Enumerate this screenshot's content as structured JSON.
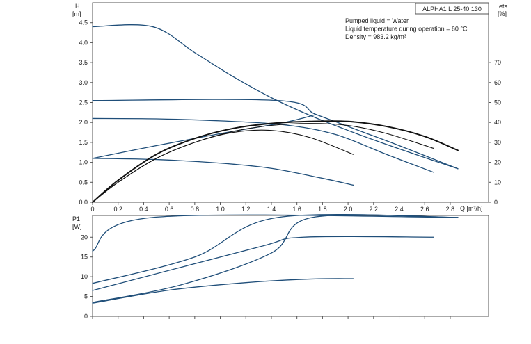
{
  "chart_data": [
    {
      "type": "line",
      "title": "ALPHA1 L 25-40 130",
      "xlabel": "Q [m³/h]",
      "ylabel": "H",
      "ylabel_unit": "[m]",
      "y2label": "eta",
      "y2label_unit": "[%]",
      "xlim": [
        0,
        3.1
      ],
      "ylim": [
        0,
        5.0
      ],
      "y2lim": [
        0,
        100
      ],
      "x_ticks": [
        "0",
        "0.2",
        "0.4",
        "0.6",
        "0.8",
        "1.0",
        "1.2",
        "1.4",
        "1.6",
        "1.8",
        "2.0",
        "2.2",
        "2.4",
        "2.6",
        "2.8"
      ],
      "y_ticks": [
        "0.0",
        "0.5",
        "1.0",
        "1.5",
        "2.0",
        "2.5",
        "3.0",
        "3.5",
        "4.0",
        "4.5"
      ],
      "y2_ticks": [
        "0",
        "10",
        "20",
        "30",
        "40",
        "50",
        "60",
        "70"
      ],
      "info": [
        "Pumped liquid = Water",
        "Liquid temperature during operation = 60 °C",
        "Density = 983.2 kg/m³"
      ],
      "series": [
        {
          "axis": "H",
          "x": [
            0,
            0.47,
            0.8,
            1.1,
            1.4,
            1.7,
            2.0,
            2.3,
            2.6,
            2.86
          ],
          "values": [
            4.4,
            4.4,
            3.75,
            3.15,
            2.62,
            2.18,
            1.8,
            1.45,
            1.12,
            0.84
          ]
        },
        {
          "axis": "H",
          "x": [
            0,
            1.45,
            1.75,
            2.1,
            2.4,
            2.86
          ],
          "values": [
            2.55,
            2.55,
            2.2,
            1.78,
            1.42,
            0.84
          ]
        },
        {
          "axis": "H",
          "x": [
            0,
            0.5,
            1.0,
            1.5,
            1.9,
            2.3,
            2.67
          ],
          "values": [
            2.1,
            2.09,
            2.04,
            1.94,
            1.7,
            1.2,
            0.75
          ]
        },
        {
          "axis": "H",
          "x": [
            0,
            0.5,
            1.0,
            1.4,
            1.8,
            2.04
          ],
          "values": [
            1.1,
            1.07,
            0.98,
            0.85,
            0.6,
            0.43
          ]
        },
        {
          "axis": "H",
          "x": [
            0,
            0.5,
            1.0,
            1.5,
            1.75
          ],
          "values": [
            1.1,
            1.42,
            1.72,
            2.0,
            2.2
          ]
        },
        {
          "axis": "eta",
          "emphasis": true,
          "x": [
            0,
            0.2,
            0.5,
            0.8,
            1.1,
            1.4,
            1.7,
            2.0,
            2.3,
            2.6,
            2.86
          ],
          "values": [
            0,
            11,
            24,
            32,
            37,
            39.5,
            40.5,
            40.5,
            38,
            33,
            26
          ]
        },
        {
          "axis": "eta",
          "x": [
            0,
            0.2,
            0.5,
            0.8,
            1.1,
            1.4,
            1.7,
            2.0,
            2.3,
            2.67
          ],
          "values": [
            0,
            10,
            22,
            30,
            35.5,
            38.5,
            39.5,
            38.5,
            34.5,
            27
          ]
        },
        {
          "axis": "eta",
          "x": [
            0,
            0.2,
            0.5,
            0.8,
            1.1,
            1.4,
            1.7,
            2.04
          ],
          "values": [
            0,
            10,
            22,
            30,
            35,
            36,
            32.5,
            24
          ]
        }
      ]
    },
    {
      "type": "line",
      "ylabel": "P1",
      "ylabel_unit": "[W]",
      "xlim": [
        0,
        3.1
      ],
      "ylim": [
        0,
        25.5
      ],
      "y_ticks": [
        "0",
        "5",
        "10",
        "15",
        "20"
      ],
      "series": [
        {
          "x": [
            0,
            0.47,
            2.86
          ],
          "values": [
            16.5,
            25,
            25
          ]
        },
        {
          "x": [
            0,
            0.8,
            1.45,
            2.86
          ],
          "values": [
            8.3,
            15,
            25,
            25
          ]
        },
        {
          "x": [
            0,
            1.3,
            1.65,
            2.67
          ],
          "values": [
            6.5,
            17.5,
            20,
            20
          ]
        },
        {
          "x": [
            0,
            0.7,
            1.4,
            1.72,
            2.86
          ],
          "values": [
            3.5,
            8,
            16,
            25,
            25
          ]
        },
        {
          "x": [
            0,
            0.6,
            1.2,
            1.7,
            2.04
          ],
          "values": [
            3.3,
            6.6,
            8.5,
            9.4,
            9.5
          ]
        }
      ]
    }
  ]
}
